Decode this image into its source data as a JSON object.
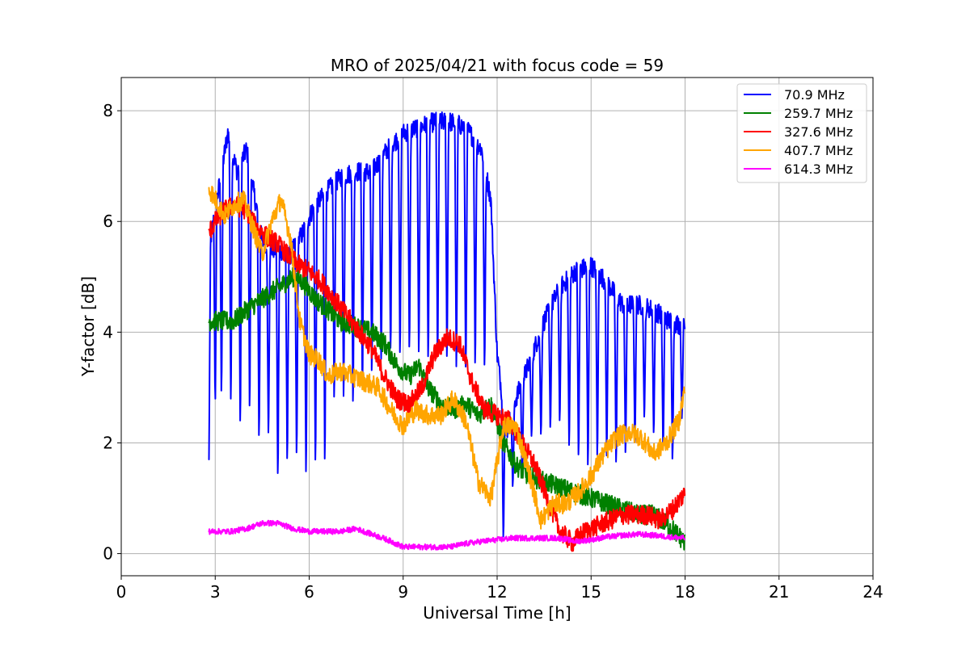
{
  "chart_data": {
    "type": "line",
    "title": "MRO of 2025/04/21 with focus code = 59",
    "xlabel": "Universal Time [h]",
    "ylabel": "Y-factor [dB]",
    "xlim": [
      0,
      24
    ],
    "ylim": [
      -0.4,
      8.6
    ],
    "xticks": [
      0,
      3,
      6,
      9,
      12,
      15,
      18,
      21,
      24
    ],
    "yticks": [
      0,
      2,
      4,
      6,
      8
    ],
    "grid": true,
    "legend": "top-right",
    "series": [
      {
        "name": " 70.9 MHz",
        "color": "#0000ff",
        "base": [
          [
            2.8,
            5.5
          ],
          [
            3.0,
            6.2
          ],
          [
            3.4,
            7.6
          ],
          [
            3.7,
            6.9
          ],
          [
            4.0,
            7.3
          ],
          [
            4.3,
            6.3
          ],
          [
            4.6,
            5.5
          ],
          [
            5.0,
            5.5
          ],
          [
            5.4,
            5.4
          ],
          [
            5.8,
            5.8
          ],
          [
            6.1,
            6.2
          ],
          [
            6.5,
            6.5
          ],
          [
            7.0,
            6.8
          ],
          [
            7.5,
            6.9
          ],
          [
            8.0,
            6.9
          ],
          [
            8.5,
            7.3
          ],
          [
            9.0,
            7.6
          ],
          [
            9.5,
            7.7
          ],
          [
            10.0,
            7.8
          ],
          [
            10.5,
            7.8
          ],
          [
            11.0,
            7.7
          ],
          [
            11.5,
            7.3
          ],
          [
            11.8,
            6.4
          ],
          [
            12.0,
            3.6
          ],
          [
            12.3,
            2.2
          ],
          [
            12.6,
            2.8
          ],
          [
            13.0,
            3.4
          ],
          [
            13.5,
            4.2
          ],
          [
            14.0,
            4.8
          ],
          [
            14.5,
            5.1
          ],
          [
            15.0,
            5.2
          ],
          [
            15.5,
            4.9
          ],
          [
            16.0,
            4.5
          ],
          [
            16.5,
            4.5
          ],
          [
            17.0,
            4.4
          ],
          [
            17.5,
            4.2
          ],
          [
            18.0,
            4.1
          ]
        ],
        "dips": [
          [
            2.8,
            1.7
          ],
          [
            3.0,
            2.5
          ],
          [
            3.2,
            2.6
          ],
          [
            3.5,
            2.4
          ],
          [
            3.8,
            2.0
          ],
          [
            4.1,
            2.3
          ],
          [
            4.4,
            1.8
          ],
          [
            4.7,
            1.9
          ],
          [
            5.0,
            1.1
          ],
          [
            5.3,
            1.4
          ],
          [
            5.6,
            1.5
          ],
          [
            5.9,
            1.1
          ],
          [
            6.2,
            1.3
          ],
          [
            6.5,
            1.3
          ],
          [
            6.8,
            2.5
          ],
          [
            7.1,
            2.5
          ],
          [
            7.4,
            2.4
          ],
          [
            7.7,
            2.7
          ],
          [
            8.0,
            3.0
          ],
          [
            8.3,
            3.2
          ],
          [
            8.6,
            3.4
          ],
          [
            8.9,
            3.3
          ],
          [
            9.2,
            3.4
          ],
          [
            9.5,
            3.3
          ],
          [
            9.8,
            3.2
          ],
          [
            10.1,
            3.2
          ],
          [
            10.4,
            3.2
          ],
          [
            10.7,
            3.0
          ],
          [
            11.0,
            3.0
          ],
          [
            11.3,
            3.1
          ],
          [
            11.6,
            3.1
          ],
          [
            12.2,
            0.1
          ],
          [
            12.5,
            1.1
          ],
          [
            12.8,
            1.3
          ],
          [
            13.1,
            2.0
          ],
          [
            13.4,
            2.0
          ],
          [
            13.7,
            2.1
          ],
          [
            14.0,
            2.2
          ],
          [
            14.3,
            1.7
          ],
          [
            14.6,
            1.5
          ],
          [
            14.9,
            1.3
          ],
          [
            15.2,
            1.5
          ],
          [
            15.5,
            1.5
          ],
          [
            15.8,
            1.4
          ],
          [
            16.1,
            1.6
          ],
          [
            16.4,
            1.8
          ],
          [
            16.7,
            2.3
          ],
          [
            17.0,
            2.0
          ],
          [
            17.3,
            1.7
          ],
          [
            17.6,
            1.5
          ],
          [
            17.9,
            2.3
          ]
        ]
      },
      {
        "name": "259.7 MHz",
        "color": "#008000",
        "base": [
          [
            2.8,
            4.2
          ],
          [
            3.2,
            4.2
          ],
          [
            3.6,
            4.2
          ],
          [
            4.0,
            4.4
          ],
          [
            4.5,
            4.6
          ],
          [
            5.0,
            4.8
          ],
          [
            5.5,
            5.0
          ],
          [
            5.8,
            4.9
          ],
          [
            6.2,
            4.6
          ],
          [
            6.6,
            4.4
          ],
          [
            7.0,
            4.2
          ],
          [
            7.5,
            4.1
          ],
          [
            8.0,
            4.0
          ],
          [
            8.4,
            3.8
          ],
          [
            8.8,
            3.4
          ],
          [
            9.2,
            3.2
          ],
          [
            9.5,
            3.4
          ],
          [
            9.8,
            3.0
          ],
          [
            10.2,
            2.7
          ],
          [
            10.6,
            2.6
          ],
          [
            11.0,
            2.7
          ],
          [
            11.4,
            2.5
          ],
          [
            11.8,
            2.7
          ],
          [
            12.2,
            2.0
          ],
          [
            12.6,
            1.6
          ],
          [
            13.0,
            1.4
          ],
          [
            13.5,
            1.3
          ],
          [
            14.0,
            1.2
          ],
          [
            14.5,
            1.1
          ],
          [
            15.0,
            1.0
          ],
          [
            15.5,
            0.9
          ],
          [
            16.0,
            0.8
          ],
          [
            16.5,
            0.7
          ],
          [
            17.0,
            0.7
          ],
          [
            17.5,
            0.5
          ],
          [
            18.0,
            0.2
          ]
        ]
      },
      {
        "name": "327.6 MHz",
        "color": "#ff0000",
        "base": [
          [
            2.8,
            5.8
          ],
          [
            3.0,
            6.0
          ],
          [
            3.3,
            6.2
          ],
          [
            3.6,
            6.3
          ],
          [
            4.0,
            6.2
          ],
          [
            4.3,
            5.9
          ],
          [
            4.7,
            5.7
          ],
          [
            5.0,
            5.6
          ],
          [
            5.3,
            5.4
          ],
          [
            5.7,
            5.2
          ],
          [
            6.0,
            5.1
          ],
          [
            6.4,
            4.9
          ],
          [
            6.8,
            4.6
          ],
          [
            7.2,
            4.3
          ],
          [
            7.6,
            4.0
          ],
          [
            8.0,
            3.7
          ],
          [
            8.4,
            3.2
          ],
          [
            8.8,
            2.8
          ],
          [
            9.2,
            2.7
          ],
          [
            9.6,
            3.0
          ],
          [
            10.0,
            3.6
          ],
          [
            10.4,
            3.9
          ],
          [
            10.8,
            3.8
          ],
          [
            11.2,
            3.1
          ],
          [
            11.6,
            2.6
          ],
          [
            12.0,
            2.5
          ],
          [
            12.4,
            2.4
          ],
          [
            12.8,
            2.0
          ],
          [
            13.2,
            1.6
          ],
          [
            13.6,
            1.0
          ],
          [
            14.0,
            0.4
          ],
          [
            14.4,
            0.2
          ],
          [
            14.8,
            0.4
          ],
          [
            15.2,
            0.5
          ],
          [
            15.6,
            0.6
          ],
          [
            16.0,
            0.7
          ],
          [
            16.4,
            0.7
          ],
          [
            16.8,
            0.7
          ],
          [
            17.2,
            0.6
          ],
          [
            17.6,
            0.8
          ],
          [
            18.0,
            1.1
          ]
        ]
      },
      {
        "name": "407.7 MHz",
        "color": "#ffa500",
        "base": [
          [
            2.8,
            6.6
          ],
          [
            3.0,
            6.4
          ],
          [
            3.3,
            6.1
          ],
          [
            3.6,
            6.3
          ],
          [
            3.9,
            6.4
          ],
          [
            4.2,
            5.9
          ],
          [
            4.5,
            5.4
          ],
          [
            4.8,
            6.0
          ],
          [
            5.1,
            6.4
          ],
          [
            5.4,
            5.7
          ],
          [
            5.7,
            4.2
          ],
          [
            6.0,
            3.6
          ],
          [
            6.3,
            3.5
          ],
          [
            6.6,
            3.2
          ],
          [
            7.0,
            3.3
          ],
          [
            7.4,
            3.2
          ],
          [
            7.8,
            3.1
          ],
          [
            8.2,
            3.0
          ],
          [
            8.6,
            2.6
          ],
          [
            9.0,
            2.3
          ],
          [
            9.4,
            2.6
          ],
          [
            9.8,
            2.5
          ],
          [
            10.2,
            2.5
          ],
          [
            10.6,
            2.8
          ],
          [
            11.0,
            2.4
          ],
          [
            11.4,
            1.3
          ],
          [
            11.8,
            1.0
          ],
          [
            12.2,
            2.3
          ],
          [
            12.6,
            2.3
          ],
          [
            13.0,
            1.5
          ],
          [
            13.4,
            0.6
          ],
          [
            13.8,
            0.9
          ],
          [
            14.2,
            0.9
          ],
          [
            14.6,
            1.1
          ],
          [
            15.0,
            1.4
          ],
          [
            15.4,
            1.8
          ],
          [
            15.8,
            2.1
          ],
          [
            16.2,
            2.2
          ],
          [
            16.6,
            2.1
          ],
          [
            17.0,
            1.8
          ],
          [
            17.4,
            2.0
          ],
          [
            17.8,
            2.4
          ],
          [
            18.0,
            3.0
          ]
        ]
      },
      {
        "name": "614.3 MHz",
        "color": "#ff00ff",
        "base": [
          [
            2.8,
            0.4
          ],
          [
            3.5,
            0.4
          ],
          [
            4.0,
            0.45
          ],
          [
            4.5,
            0.55
          ],
          [
            5.0,
            0.55
          ],
          [
            5.5,
            0.45
          ],
          [
            6.0,
            0.4
          ],
          [
            6.5,
            0.4
          ],
          [
            7.0,
            0.4
          ],
          [
            7.5,
            0.45
          ],
          [
            8.0,
            0.35
          ],
          [
            8.5,
            0.25
          ],
          [
            9.0,
            0.12
          ],
          [
            9.5,
            0.12
          ],
          [
            10.0,
            0.12
          ],
          [
            10.5,
            0.12
          ],
          [
            11.0,
            0.18
          ],
          [
            11.5,
            0.22
          ],
          [
            12.0,
            0.25
          ],
          [
            12.5,
            0.28
          ],
          [
            13.0,
            0.28
          ],
          [
            13.5,
            0.28
          ],
          [
            14.0,
            0.28
          ],
          [
            14.5,
            0.22
          ],
          [
            15.0,
            0.25
          ],
          [
            15.5,
            0.3
          ],
          [
            16.0,
            0.33
          ],
          [
            16.5,
            0.35
          ],
          [
            17.0,
            0.33
          ],
          [
            17.5,
            0.3
          ],
          [
            18.0,
            0.28
          ]
        ]
      }
    ]
  }
}
